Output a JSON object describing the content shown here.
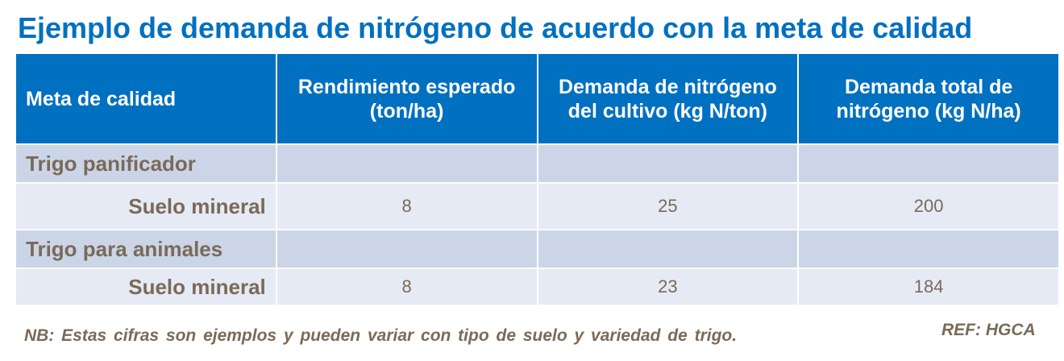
{
  "title": "Ejemplo de demanda de nitrógeno de acuerdo con la meta de calidad",
  "table": {
    "headers": [
      "Meta de calidad",
      "Rendimiento esperado (ton/ha)",
      "Demanda de nitrógeno del cultivo (kg N/ton)",
      "Demanda total de nitrógeno (kg N/ha)"
    ],
    "rows": [
      {
        "label": "Trigo panificador",
        "values": [
          "",
          "",
          ""
        ]
      },
      {
        "label": "Suelo mineral",
        "values": [
          "8",
          "25",
          "200"
        ]
      },
      {
        "label": "Trigo para animales",
        "values": [
          "",
          "",
          ""
        ]
      },
      {
        "label": "Suelo mineral",
        "values": [
          "8",
          "23",
          "184"
        ]
      }
    ]
  },
  "note": "NB: Estas cifras son ejemplos y pueden variar con tipo de suelo y variedad de trigo.",
  "reference": "REF: HGCA",
  "colors": {
    "header": "#0070C0",
    "row_dark": "#CBD5E7",
    "row_light": "#E5EAF4",
    "text": "#7a6a58"
  }
}
